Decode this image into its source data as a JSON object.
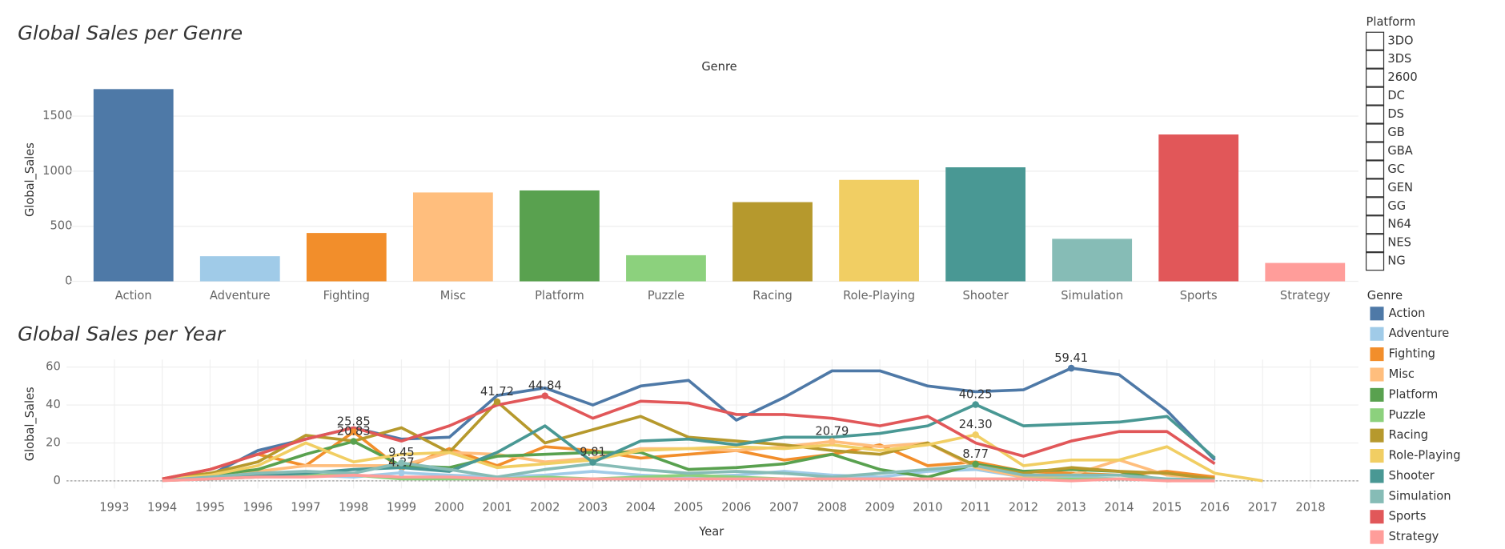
{
  "chart_data": [
    {
      "type": "bar",
      "title": "Global Sales per Genre",
      "xlabel": "Genre",
      "ylabel": "Global_Sales",
      "categories": [
        "Action",
        "Adventure",
        "Fighting",
        "Misc",
        "Platform",
        "Puzzle",
        "Racing",
        "Role-Playing",
        "Shooter",
        "Simulation",
        "Sports",
        "Strategy"
      ],
      "values": [
        1745,
        228,
        439,
        807,
        825,
        237,
        719,
        921,
        1035,
        386,
        1333,
        167
      ],
      "colors": [
        "#4e79a7",
        "#a0cbe8",
        "#f28e2b",
        "#ffbe7d",
        "#59a14f",
        "#8cd17d",
        "#b6992d",
        "#f1ce63",
        "#499894",
        "#86bcb6",
        "#e15759",
        "#ff9d9a"
      ],
      "ylim": [
        0,
        1800
      ],
      "yticks": [
        0,
        500,
        1000,
        1500
      ],
      "grid": true
    },
    {
      "type": "line",
      "title": "Global Sales per Year",
      "xlabel": "Year",
      "ylabel": "Global_Sales",
      "legend_title": "Genre",
      "x": [
        1994,
        1995,
        1996,
        1997,
        1998,
        1999,
        2000,
        2001,
        2002,
        2003,
        2004,
        2005,
        2006,
        2007,
        2008,
        2009,
        2010,
        2011,
        2012,
        2013,
        2014,
        2015,
        2016,
        2017
      ],
      "xlim": [
        1992,
        2019
      ],
      "xticks": [
        1993,
        1994,
        1995,
        1996,
        1997,
        1998,
        1999,
        2000,
        2001,
        2002,
        2003,
        2004,
        2005,
        2006,
        2007,
        2008,
        2009,
        2010,
        2011,
        2012,
        2013,
        2014,
        2015,
        2016,
        2017,
        2018
      ],
      "ylim": [
        -4,
        64
      ],
      "yticks": [
        0,
        20,
        40,
        60
      ],
      "grid": true,
      "series": [
        {
          "name": "Action",
          "color": "#4e79a7",
          "values": [
            1,
            3,
            16,
            22,
            28,
            22,
            23,
            45,
            49,
            40,
            50,
            53,
            32,
            44,
            58,
            58,
            50,
            47,
            48,
            59.41,
            56,
            37,
            11,
            null
          ],
          "value_labels": [
            null,
            null,
            null,
            null,
            null,
            null,
            null,
            null,
            null,
            null,
            null,
            null,
            null,
            null,
            null,
            null,
            null,
            null,
            null,
            "59.41",
            null,
            null,
            null,
            null
          ]
        },
        {
          "name": "Adventure",
          "color": "#a0cbe8",
          "values": [
            0.2,
            1,
            2,
            3,
            2,
            4.27,
            3,
            2,
            3,
            5,
            3,
            2,
            3,
            5,
            3,
            2,
            5,
            6,
            2,
            2,
            1,
            1,
            0.5,
            null
          ],
          "value_labels": [
            null,
            null,
            null,
            null,
            null,
            "4.27",
            null,
            null,
            null,
            null,
            null,
            null,
            null,
            null,
            null,
            null,
            null,
            null,
            null,
            null,
            null,
            null,
            null,
            null
          ]
        },
        {
          "name": "Fighting",
          "color": "#f28e2b",
          "values": [
            1,
            6,
            14,
            8,
            25.85,
            6,
            17,
            8,
            18,
            16,
            12,
            14,
            16,
            11,
            14,
            19,
            8,
            10,
            5,
            4,
            3,
            5,
            2,
            null
          ],
          "value_labels": [
            null,
            null,
            null,
            null,
            "25.85",
            null,
            null,
            null,
            null,
            null,
            null,
            null,
            null,
            null,
            null,
            null,
            null,
            null,
            null,
            null,
            null,
            null,
            null,
            null
          ]
        },
        {
          "name": "Misc",
          "color": "#ffbe7d",
          "values": [
            0.5,
            3,
            5,
            8,
            8,
            8,
            15,
            14,
            10,
            12,
            17,
            17,
            16,
            18,
            20.79,
            18,
            20,
            7,
            2,
            3,
            11,
            3,
            1,
            null
          ],
          "value_labels": [
            null,
            null,
            null,
            null,
            null,
            null,
            null,
            null,
            null,
            null,
            null,
            null,
            null,
            null,
            "20.79",
            null,
            null,
            null,
            null,
            null,
            null,
            null,
            null,
            null
          ]
        },
        {
          "name": "Platform",
          "color": "#59a14f",
          "values": [
            0.5,
            3,
            6,
            14,
            20.83,
            8,
            7,
            13,
            14,
            15,
            15,
            6,
            7,
            9,
            14,
            6,
            2,
            8.77,
            5,
            6,
            5,
            0,
            0.5,
            null
          ],
          "value_labels": [
            null,
            null,
            null,
            null,
            "20.83",
            null,
            null,
            null,
            null,
            null,
            null,
            null,
            null,
            null,
            null,
            null,
            null,
            "8.77",
            null,
            null,
            null,
            null,
            null,
            null
          ]
        },
        {
          "name": "Puzzle",
          "color": "#8cd17d",
          "values": [
            0.2,
            1,
            2,
            3,
            3,
            1,
            1,
            1,
            2,
            1,
            2,
            3,
            2,
            1,
            1,
            1,
            1,
            1,
            1,
            1,
            1,
            1,
            0,
            null
          ]
        },
        {
          "name": "Racing",
          "color": "#b6992d",
          "values": [
            1,
            4,
            10,
            24,
            21,
            28,
            15,
            41.72,
            20,
            27,
            34,
            23,
            21,
            19,
            16,
            14,
            20,
            8,
            4,
            7,
            5,
            4,
            1,
            null
          ],
          "value_labels": [
            null,
            null,
            null,
            null,
            null,
            null,
            null,
            "41.72",
            null,
            null,
            null,
            null,
            null,
            null,
            null,
            null,
            null,
            null,
            null,
            null,
            null,
            null,
            null,
            null
          ]
        },
        {
          "name": "Role-Playing",
          "color": "#f1ce63",
          "values": [
            0.5,
            3,
            8,
            20,
            10,
            14,
            15,
            7,
            9,
            11,
            16,
            17,
            18,
            17,
            19,
            16,
            19,
            24.3,
            8,
            11,
            11,
            18,
            4,
            0
          ],
          "value_labels": [
            null,
            null,
            null,
            null,
            null,
            null,
            null,
            null,
            null,
            null,
            null,
            null,
            null,
            null,
            null,
            null,
            null,
            "24.30",
            null,
            null,
            null,
            null,
            null,
            null
          ]
        },
        {
          "name": "Shooter",
          "color": "#499894",
          "values": [
            0.3,
            1,
            3,
            4,
            6,
            7,
            5,
            15,
            29,
            9.81,
            21,
            22,
            19,
            23,
            23,
            25,
            29,
            40.25,
            29,
            30,
            31,
            34,
            12,
            null
          ],
          "value_labels": [
            null,
            null,
            null,
            null,
            null,
            null,
            null,
            null,
            null,
            "9.81",
            null,
            null,
            null,
            null,
            null,
            null,
            null,
            "40.25",
            null,
            null,
            null,
            null,
            null,
            null
          ]
        },
        {
          "name": "Simulation",
          "color": "#86bcb6",
          "values": [
            0.2,
            2,
            4,
            5,
            4,
            9.45,
            6,
            2,
            6,
            9,
            6,
            4,
            5,
            4,
            2,
            4,
            6,
            8,
            3,
            3,
            3,
            1,
            0.5,
            null
          ],
          "value_labels": [
            null,
            null,
            null,
            null,
            null,
            "9.45",
            null,
            null,
            null,
            null,
            null,
            null,
            null,
            null,
            null,
            null,
            null,
            null,
            null,
            null,
            null,
            null,
            null,
            null
          ]
        },
        {
          "name": "Sports",
          "color": "#e15759",
          "values": [
            1,
            6,
            14,
            22,
            28,
            21,
            29,
            40,
            44.84,
            33,
            42,
            41,
            35,
            35,
            33,
            29,
            34,
            20,
            13,
            21,
            26,
            26,
            9,
            null
          ],
          "value_labels": [
            null,
            null,
            null,
            null,
            null,
            null,
            null,
            null,
            "44.84",
            null,
            null,
            null,
            null,
            null,
            null,
            null,
            null,
            null,
            null,
            null,
            null,
            null,
            null,
            null
          ]
        },
        {
          "name": "Strategy",
          "color": "#ff9d9a",
          "values": [
            0.1,
            1,
            2,
            2,
            3,
            2,
            2,
            1,
            1,
            1,
            1,
            1,
            1,
            1,
            1,
            1,
            1,
            1,
            1,
            0,
            1,
            0,
            0,
            null
          ]
        }
      ]
    }
  ],
  "platform_filter": {
    "title": "Platform",
    "options": [
      "3DO",
      "3DS",
      "2600",
      "DC",
      "DS",
      "GB",
      "GBA",
      "GC",
      "GEN",
      "GG",
      "N64",
      "NES",
      "NG"
    ]
  }
}
